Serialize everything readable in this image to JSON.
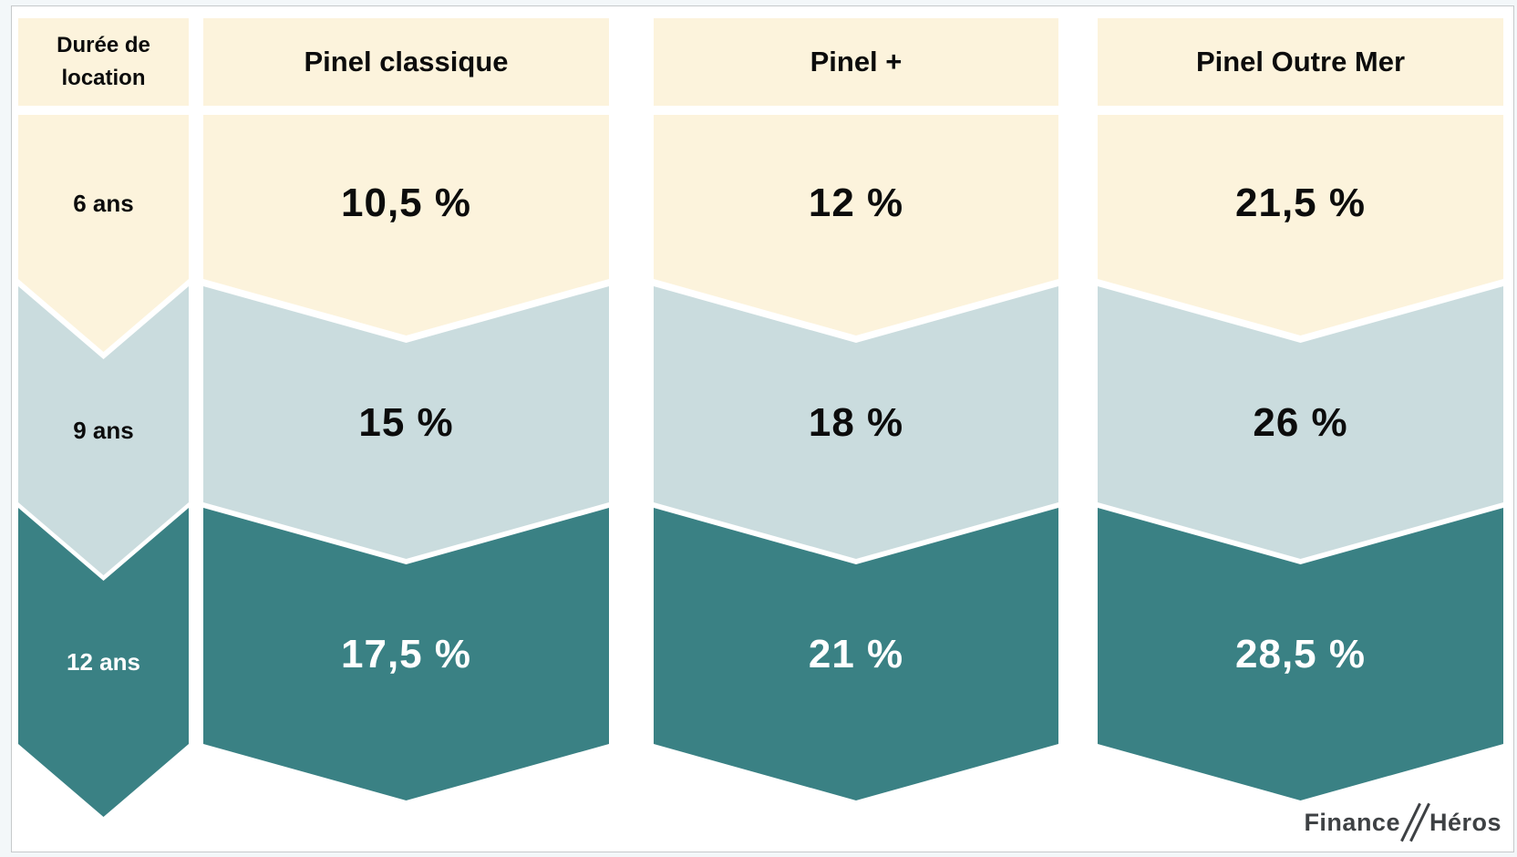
{
  "table": {
    "duration_header": "Durée de location",
    "row_labels": [
      "6 ans",
      "9 ans",
      "12 ans"
    ],
    "columns": [
      {
        "label": "Pinel classique",
        "values": [
          "10,5 %",
          "15 %",
          "17,5 %"
        ]
      },
      {
        "label": "Pinel +",
        "values": [
          "12 %",
          "18 %",
          "21 %"
        ]
      },
      {
        "label": "Pinel Outre Mer",
        "values": [
          "21,5 %",
          "26 %",
          "28,5 %"
        ]
      }
    ]
  },
  "colors": {
    "header_bg": "#fcf3dc",
    "band_6_ans": "#fcf3dc",
    "band_9_ans": "#cadcde",
    "band_12_ans": "#3a8184",
    "value_text_dark": "#0c0c0c",
    "value_text_light": "#ffffff",
    "logo_text": "#3e4144"
  },
  "logo": {
    "part1": "Finance",
    "part2": "Héros"
  },
  "chart_data": {
    "type": "table",
    "columns": [
      "Durée de location",
      "Pinel classique",
      "Pinel +",
      "Pinel Outre Mer"
    ],
    "rows": [
      [
        "6 ans",
        "10,5 %",
        "12 %",
        "21,5 %"
      ],
      [
        "9 ans",
        "15 %",
        "18 %",
        "26 %"
      ],
      [
        "12 ans",
        "17,5 %",
        "21 %",
        "28,5 %"
      ]
    ]
  }
}
